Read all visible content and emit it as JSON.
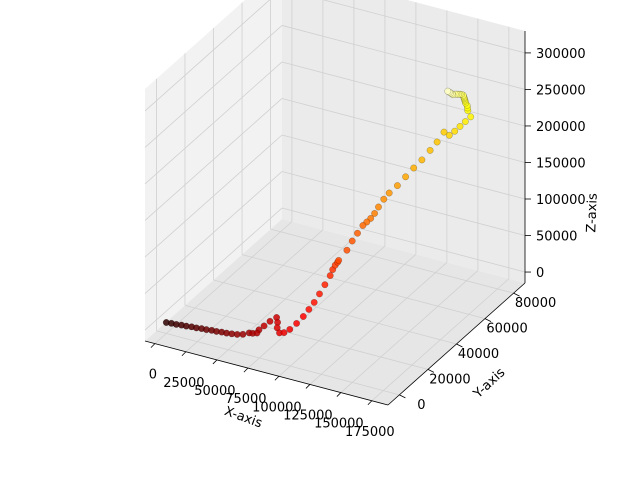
{
  "chart_data": {
    "type": "scatter",
    "title": "",
    "xlabel": "X-axis",
    "ylabel": "Y-axis",
    "zlabel": "Z-axis",
    "xticks": [
      "0",
      "25000",
      "50000",
      "75000",
      "100000",
      "125000",
      "150000",
      "175000"
    ],
    "yticks": [
      "0",
      "20000",
      "40000",
      "60000",
      "80000"
    ],
    "zticks": [
      "0",
      "50000",
      "100000",
      "150000",
      "200000",
      "250000",
      "300000"
    ],
    "xlim": [
      -8000,
      188000
    ],
    "ylim": [
      -8000,
      88000
    ],
    "zlim": [
      -15000,
      330000
    ],
    "grid": true,
    "colormap": "hot (dark red to yellow, following point order)",
    "x": [
      0,
      4000,
      8000,
      12000,
      16000,
      20000,
      24000,
      28000,
      32000,
      36000,
      40000,
      44000,
      48000,
      52000,
      56000,
      60000,
      64000,
      68000,
      72000,
      73000,
      76000,
      79000,
      82000,
      84000,
      86000,
      89000,
      92000,
      95000,
      97000,
      99000,
      100000,
      102000,
      104000,
      106000,
      108000,
      110000,
      112000,
      114000,
      116000,
      118000,
      120000,
      122000,
      124000,
      126000,
      128000,
      130000,
      132000,
      134000,
      136000,
      138000,
      140000,
      142000,
      144000,
      146000,
      147000,
      148000,
      150000,
      152000,
      154000,
      156000,
      158000,
      158000,
      160000,
      162000,
      163000,
      165000,
      167000,
      169000,
      171000,
      173000,
      175000,
      176000,
      177000,
      178000,
      179000,
      180000,
      180500,
      181000,
      181000,
      181000,
      181000
    ],
    "y": [
      0,
      100,
      0,
      200,
      100,
      300,
      200,
      400,
      300,
      500,
      400,
      600,
      500,
      700,
      1000,
      1500,
      2500,
      1500,
      1000,
      1500,
      2500,
      4000,
      6000,
      5000,
      3000,
      2000,
      2500,
      4000,
      7000,
      10000,
      13000,
      15000,
      17000,
      19000,
      21000,
      21000,
      21000,
      21000,
      20000,
      24000,
      26000,
      28000,
      30000,
      31000,
      32000,
      33000,
      34000,
      36000,
      38000,
      42000,
      46000,
      50000,
      54000,
      58000,
      62000,
      66000,
      68000,
      70000,
      72000,
      74000,
      76000,
      74000,
      72000,
      70000,
      68000,
      66000,
      64000,
      62000,
      60000,
      58000,
      56000,
      54000,
      52000,
      50000,
      48000,
      46000,
      44000,
      43000,
      42000,
      41000,
      40000
    ],
    "z": [
      0,
      500,
      1000,
      1500,
      2000,
      2500,
      3000,
      3500,
      4000,
      4500,
      5000,
      5500,
      6000,
      6500,
      7000,
      8000,
      10000,
      13000,
      16000,
      20000,
      25000,
      30000,
      33000,
      29000,
      26000,
      22000,
      23000,
      26000,
      30000,
      35000,
      40000,
      47000,
      56000,
      66000,
      76000,
      85000,
      92000,
      97000,
      102000,
      110000,
      120000,
      128000,
      136000,
      140000,
      144000,
      150000,
      158000,
      166000,
      172000,
      176000,
      182000,
      188000,
      193000,
      200000,
      205000,
      212000,
      205000,
      208000,
      212000,
      216000,
      220000,
      232000,
      240000,
      248000,
      255000,
      262000,
      268000,
      274000,
      280000,
      286000,
      292000,
      297000,
      301000,
      305000,
      309000,
      313000,
      316000,
      319000,
      322000,
      325000,
      328000
    ]
  }
}
